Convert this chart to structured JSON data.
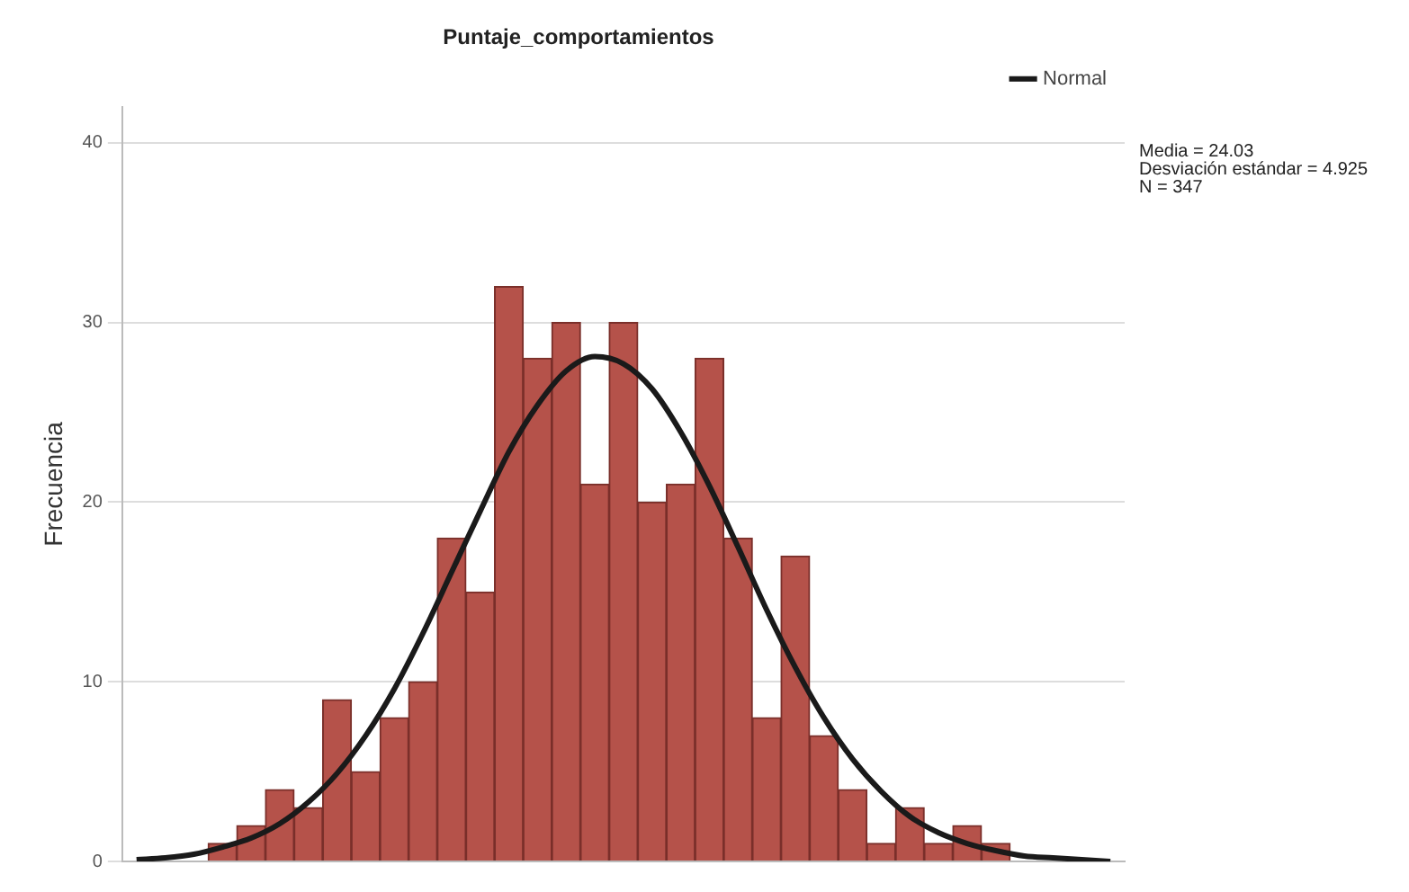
{
  "chart_data": {
    "type": "bar",
    "title": "Puntaje_comportamientos",
    "ylabel": "Frecuencia",
    "categories": [
      null,
      null,
      null,
      null,
      null,
      null,
      null,
      null,
      null,
      null,
      null,
      null,
      null,
      null,
      null,
      null,
      null,
      null,
      null,
      null,
      null,
      null,
      null,
      null,
      null,
      null,
      null,
      null,
      null,
      null,
      null,
      null,
      null,
      null,
      null
    ],
    "series": [
      {
        "color": "#b5524a",
        "values": [
          null,
          null,
          null,
          1,
          2,
          4,
          3,
          9,
          5,
          8,
          10,
          18,
          15,
          32,
          28,
          30,
          21,
          30,
          20,
          21,
          28,
          18,
          8,
          17,
          7,
          4,
          1,
          3,
          1,
          2,
          1,
          null,
          null,
          null,
          null
        ]
      },
      {
        "type": "line",
        "name": "Normal",
        "color": "#1a1a1a",
        "values": [
          0.1,
          0.2,
          0.4,
          0.8,
          1.3,
          2.1,
          3.3,
          4.9,
          7.0,
          9.6,
          12.7,
          16.1,
          19.5,
          22.8,
          25.4,
          27.3,
          28.1,
          27.7,
          26.3,
          23.9,
          20.9,
          17.5,
          14.0,
          10.8,
          8.0,
          5.7,
          3.9,
          2.5,
          1.6,
          1.0,
          0.6,
          0.3,
          0.2,
          0.1,
          0.0
        ]
      }
    ],
    "ylim": [
      0,
      42
    ],
    "yticks": [
      0,
      10,
      20,
      30,
      40
    ],
    "grid": "y",
    "legend": "top right",
    "annotations": [
      "Media = 24.03",
      "Desviación estándar = 4.925",
      "N = 347"
    ]
  }
}
